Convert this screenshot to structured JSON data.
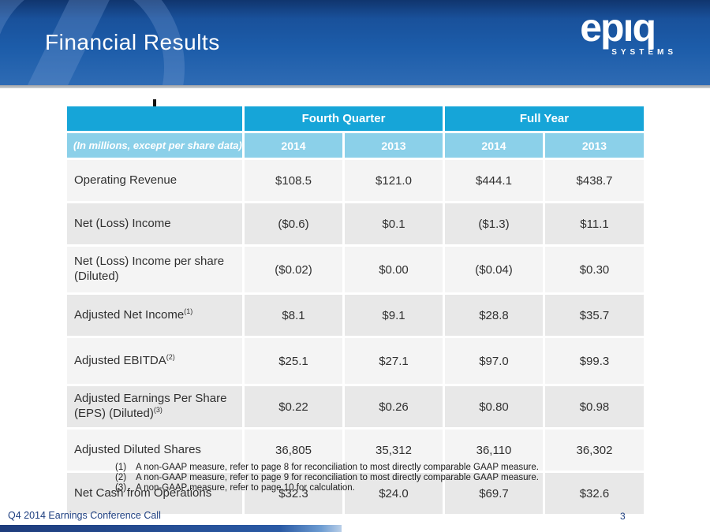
{
  "banner": {
    "title": "Financial Results",
    "logo": {
      "brand": "epıq",
      "sub": "SYSTEMS"
    }
  },
  "colors": {
    "header_cyan": "#16a5d8",
    "subheader_cyan": "#8bd0e9",
    "row_light": "#f4f4f4",
    "row_dark": "#e8e8e8",
    "banner_blue": "#1c5ca9",
    "footer_text_blue": "#1e3f80"
  },
  "table": {
    "group_headers": {
      "fourth_quarter": "Fourth Quarter",
      "full_year": "Full Year"
    },
    "subheader_label": "(In millions, except per share data)",
    "year_headers": [
      "2014",
      "2013",
      "2014",
      "2013"
    ],
    "rows": [
      {
        "label": "Operating Revenue",
        "sup": "",
        "values": [
          "$108.5",
          "$121.0",
          "$444.1",
          "$438.7"
        ]
      },
      {
        "label": "Net (Loss) Income",
        "sup": "",
        "values": [
          "($0.6)",
          "$0.1",
          "($1.3)",
          "$11.1"
        ]
      },
      {
        "label": "Net (Loss) Income per share (Diluted)",
        "sup": "",
        "values": [
          "($0.02)",
          "$0.00",
          "($0.04)",
          "$0.30"
        ]
      },
      {
        "label": "Adjusted Net Income",
        "sup": "(1)",
        "values": [
          "$8.1",
          "$9.1",
          "$28.8",
          "$35.7"
        ]
      },
      {
        "label": "Adjusted EBITDA",
        "sup": "(2)",
        "values": [
          "$25.1",
          "$27.1",
          "$97.0",
          "$99.3"
        ]
      },
      {
        "label": "Adjusted Earnings Per Share (EPS) (Diluted)",
        "sup": "(3)",
        "values": [
          "$0.22",
          "$0.26",
          "$0.80",
          "$0.98"
        ]
      },
      {
        "label": "Adjusted Diluted Shares",
        "sup": "",
        "values": [
          "36,805",
          "35,312",
          "36,110",
          "36,302"
        ]
      },
      {
        "label": "Net Cash from Operations",
        "sup": "",
        "values": [
          "$32.3",
          "$24.0",
          "$69.7",
          "$32.6"
        ]
      }
    ]
  },
  "footnotes": [
    {
      "num": "(1)",
      "text": "A non-GAAP measure, refer to page 8 for reconciliation to most directly comparable GAAP measure."
    },
    {
      "num": "(2)",
      "text": "A non-GAAP measure, refer to page 9 for reconciliation to most directly comparable GAAP measure."
    },
    {
      "num": "(3)",
      "text": "A non-GAAP measure, refer to page 10 for calculation."
    }
  ],
  "footer": {
    "left_text": "Q4 2014 Earnings Conference Call",
    "page_number": "3"
  }
}
